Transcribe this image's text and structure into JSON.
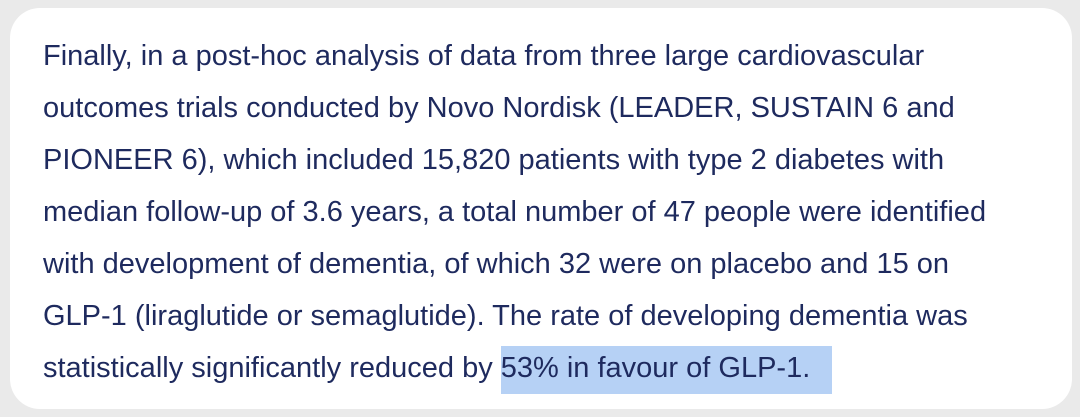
{
  "document": {
    "lines": [
      "Finally, in a post-hoc analysis of data from three large cardiovascular",
      "outcomes trials conducted by Novo Nordisk (LEADER, SUSTAIN 6 and",
      "PIONEER 6), which included 15,820 patients with type 2 diabetes with",
      "median follow-up of 3.6 years, a total number of 47 people were identified",
      "with development of dementia, of which 32 were on placebo and 15 on",
      "GLP-1 (liraglutide or semaglutide). The rate of developing dementia was"
    ],
    "last_line_plain": "statistically significantly reduced by ",
    "last_line_highlighted": "53% in favour of GLP-1.",
    "text_color": "#1e2a5e",
    "highlight_color": "#b6d1f5"
  }
}
